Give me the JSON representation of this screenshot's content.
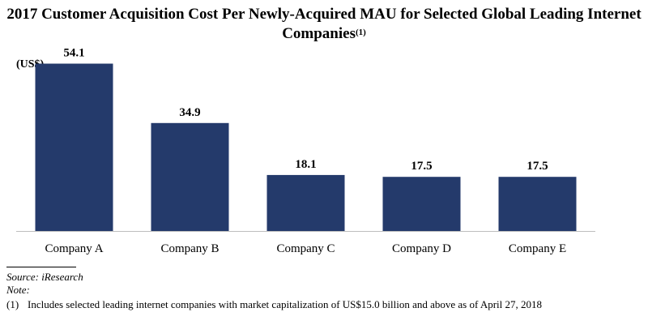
{
  "chart_data": {
    "type": "bar",
    "title": "2017 Customer Acquisition Cost Per Newly-Acquired MAU for Selected Global Leading Internet Companies",
    "title_superscript": "(1)",
    "ylabel": "(US$)",
    "xlabel": "",
    "categories": [
      "Company A",
      "Company B",
      "Company C",
      "Company D",
      "Company E"
    ],
    "values": [
      54.1,
      34.9,
      18.1,
      17.5,
      17.5
    ],
    "value_labels": [
      "54.1",
      "34.9",
      "18.1",
      "17.5",
      "17.5"
    ],
    "ylim": [
      0,
      60
    ],
    "bar_color": "#243a6b"
  },
  "footer": {
    "source": "Source: iResearch",
    "note_label": "Note:",
    "footnote_number": "(1)",
    "footnote_text": "Includes selected leading internet companies with market capitalization of US$15.0 billion and above as of April 27, 2018"
  }
}
